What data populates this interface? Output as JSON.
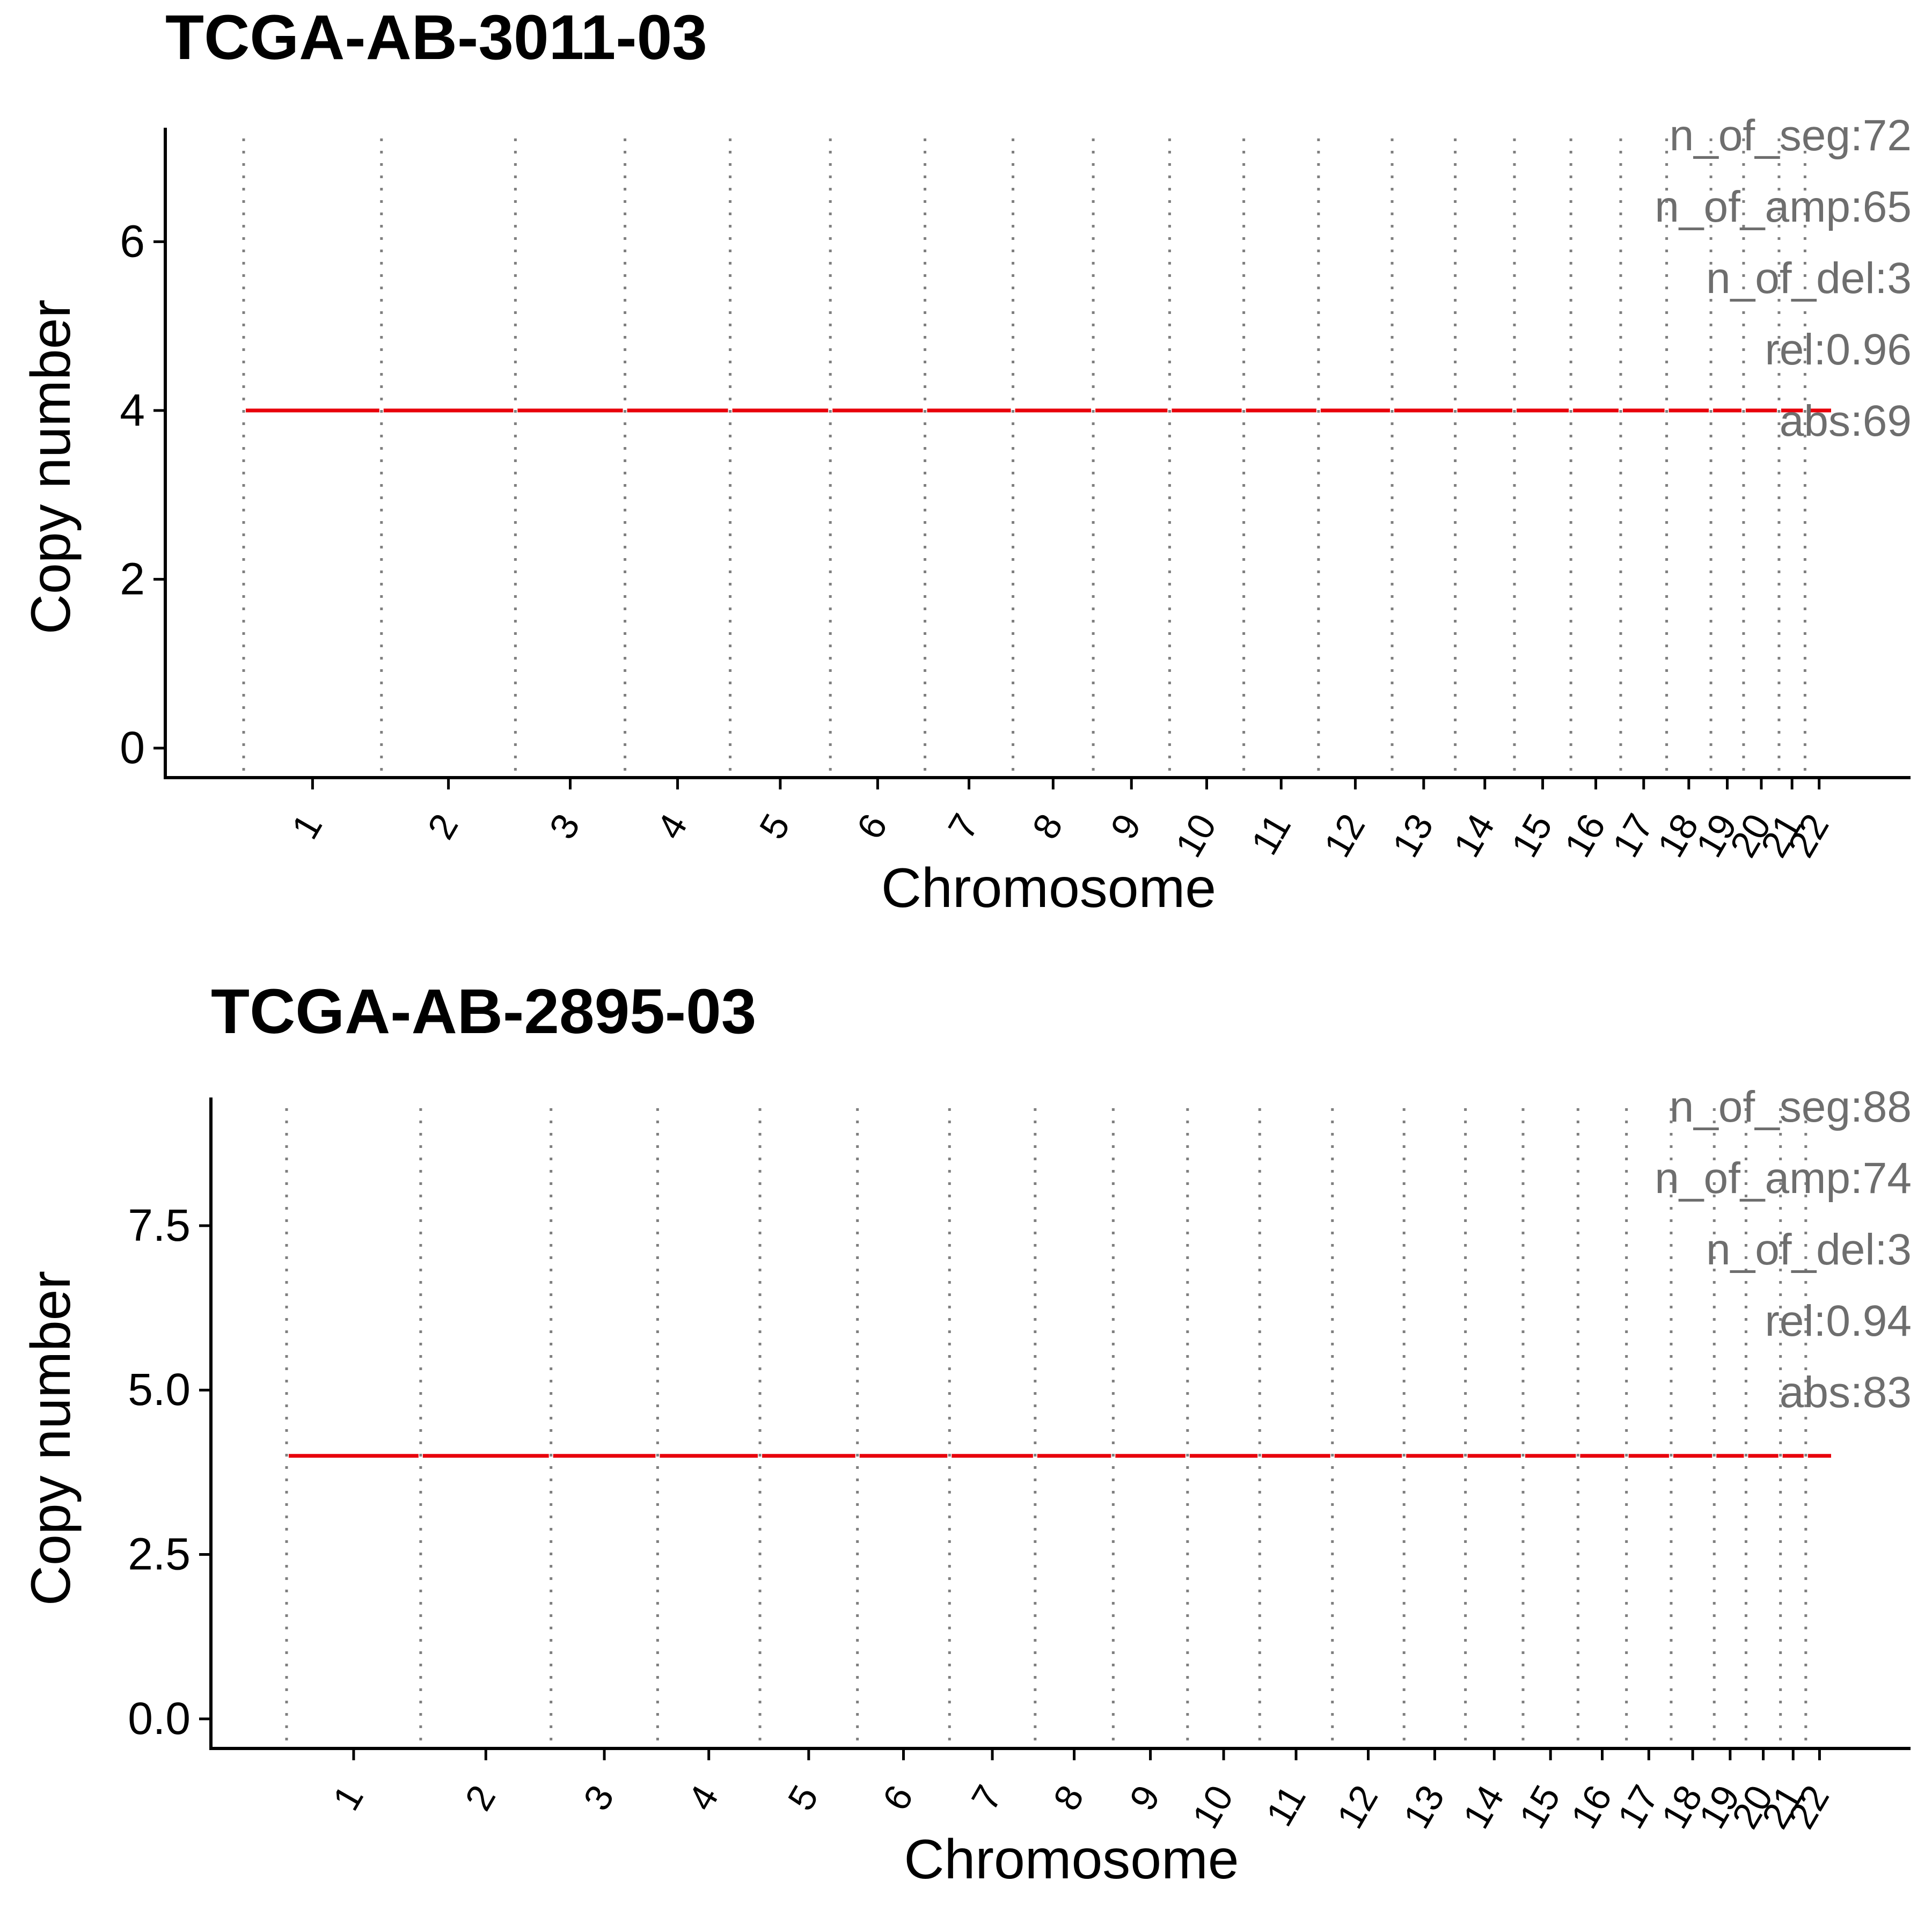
{
  "colors": {
    "segment": "#e8000b",
    "boundary": "#7f7f7f",
    "axis": "#000000",
    "stats_text": "#6e6e6e"
  },
  "chart_data": [
    {
      "type": "line",
      "title": "TCGA-AB-3011-03",
      "xlabel": "Chromosome",
      "ylabel": "Copy number",
      "categories": [
        "1",
        "2",
        "3",
        "4",
        "5",
        "6",
        "7",
        "8",
        "9",
        "10",
        "11",
        "12",
        "13",
        "14",
        "15",
        "16",
        "17",
        "18",
        "19",
        "20",
        "21",
        "22"
      ],
      "chrom_lengths_mb": [
        249,
        242,
        198,
        190,
        181,
        171,
        159,
        145,
        138,
        134,
        135,
        133,
        114,
        107,
        102,
        90,
        83,
        80,
        59,
        64,
        47,
        51
      ],
      "yticks": [
        "0",
        "2",
        "4",
        "6"
      ],
      "ytick_values": [
        0,
        2,
        4,
        6
      ],
      "ylim": [
        -0.35,
        7.35
      ],
      "grid": false,
      "series": [
        {
          "values": [
            4,
            4,
            4,
            4,
            4,
            4,
            4,
            4,
            4,
            4,
            4,
            4,
            4,
            4,
            4,
            4,
            4,
            4,
            4,
            4,
            4,
            4
          ]
        }
      ],
      "stats": [
        "n_of_seg:72",
        "n_of_amp:65",
        "n_of_del:3",
        "rel:0.96",
        "abs:69"
      ]
    },
    {
      "type": "line",
      "title": "TCGA-AB-2895-03",
      "xlabel": "Chromosome",
      "ylabel": "Copy number",
      "categories": [
        "1",
        "2",
        "3",
        "4",
        "5",
        "6",
        "7",
        "8",
        "9",
        "10",
        "11",
        "12",
        "13",
        "14",
        "15",
        "16",
        "17",
        "18",
        "19",
        "20",
        "21",
        "22"
      ],
      "chrom_lengths_mb": [
        249,
        242,
        198,
        190,
        181,
        171,
        159,
        145,
        138,
        134,
        135,
        133,
        114,
        107,
        102,
        90,
        83,
        80,
        59,
        64,
        47,
        51
      ],
      "yticks": [
        "0.0",
        "2.5",
        "5.0",
        "7.5"
      ],
      "ytick_values": [
        0,
        2.5,
        5,
        7.5
      ],
      "ylim": [
        -0.45,
        9.45
      ],
      "grid": false,
      "series": [
        {
          "values": [
            4,
            4,
            4,
            4,
            4,
            4,
            4,
            4,
            4,
            4,
            4,
            4,
            4,
            4,
            4,
            4,
            4,
            4,
            4,
            4,
            4,
            4
          ]
        }
      ],
      "stats": [
        "n_of_seg:88",
        "n_of_amp:74",
        "n_of_del:3",
        "rel:0.94",
        "abs:83"
      ]
    }
  ]
}
